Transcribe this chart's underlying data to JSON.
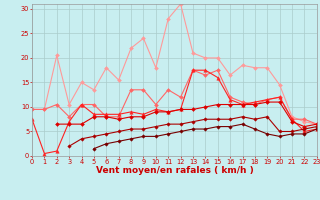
{
  "x": [
    0,
    1,
    2,
    3,
    4,
    5,
    6,
    7,
    8,
    9,
    10,
    11,
    12,
    13,
    14,
    15,
    16,
    17,
    18,
    19,
    20,
    21,
    22,
    23
  ],
  "series": [
    {
      "color": "#ff9999",
      "linewidth": 0.8,
      "marker": "D",
      "markersize": 2.0,
      "y": [
        9.5,
        9.5,
        20.5,
        10.5,
        15.0,
        13.5,
        18.0,
        15.5,
        22.0,
        24.0,
        18.0,
        28.0,
        31.0,
        21.0,
        20.0,
        20.0,
        16.5,
        18.5,
        18.0,
        18.0,
        14.5,
        8.0,
        7.0,
        6.5
      ]
    },
    {
      "color": "#ff6666",
      "linewidth": 0.8,
      "marker": "D",
      "markersize": 2.0,
      "y": [
        9.5,
        9.5,
        10.5,
        8.0,
        10.5,
        10.5,
        8.0,
        8.0,
        13.5,
        13.5,
        10.5,
        13.5,
        12.0,
        17.5,
        16.5,
        17.5,
        12.0,
        11.0,
        10.5,
        11.5,
        12.0,
        7.5,
        7.5,
        6.5
      ]
    },
    {
      "color": "#ff2222",
      "linewidth": 0.8,
      "marker": "^",
      "markersize": 2.5,
      "y": [
        7.5,
        0.5,
        1.0,
        7.0,
        10.5,
        8.5,
        8.5,
        8.5,
        9.0,
        8.5,
        9.5,
        9.0,
        9.5,
        17.5,
        17.5,
        16.0,
        11.5,
        10.5,
        11.0,
        11.5,
        12.0,
        7.5,
        5.0,
        5.5
      ]
    },
    {
      "color": "#dd0000",
      "linewidth": 0.8,
      "marker": "D",
      "markersize": 2.0,
      "y": [
        null,
        null,
        6.5,
        6.5,
        6.5,
        8.0,
        8.0,
        7.5,
        8.0,
        8.0,
        9.0,
        9.0,
        9.5,
        9.5,
        10.0,
        10.5,
        10.5,
        10.5,
        10.5,
        11.0,
        11.0,
        7.0,
        6.0,
        6.5
      ]
    },
    {
      "color": "#aa0000",
      "linewidth": 0.8,
      "marker": "D",
      "markersize": 1.8,
      "y": [
        null,
        null,
        null,
        2.0,
        3.5,
        4.0,
        4.5,
        5.0,
        5.5,
        5.5,
        6.0,
        6.5,
        6.5,
        7.0,
        7.5,
        7.5,
        7.5,
        8.0,
        7.5,
        8.0,
        5.0,
        5.0,
        5.5,
        6.0
      ]
    },
    {
      "color": "#770000",
      "linewidth": 0.8,
      "marker": "D",
      "markersize": 1.8,
      "y": [
        null,
        null,
        null,
        null,
        null,
        1.5,
        2.5,
        3.0,
        3.5,
        4.0,
        4.0,
        4.5,
        5.0,
        5.5,
        5.5,
        6.0,
        6.0,
        6.5,
        5.5,
        4.5,
        4.0,
        4.5,
        4.5,
        5.5
      ]
    }
  ],
  "xlabel": "Vent moyen/en rafales ( km/h )",
  "xlim": [
    0,
    23
  ],
  "ylim": [
    0,
    31
  ],
  "yticks": [
    0,
    5,
    10,
    15,
    20,
    25,
    30
  ],
  "xticks": [
    0,
    1,
    2,
    3,
    4,
    5,
    6,
    7,
    8,
    9,
    10,
    11,
    12,
    13,
    14,
    15,
    16,
    17,
    18,
    19,
    20,
    21,
    22,
    23
  ],
  "background_color": "#c8eef0",
  "grid_color": "#aacccc",
  "label_color": "#cc0000",
  "xlabel_fontsize": 6.5,
  "tick_fontsize": 4.8
}
